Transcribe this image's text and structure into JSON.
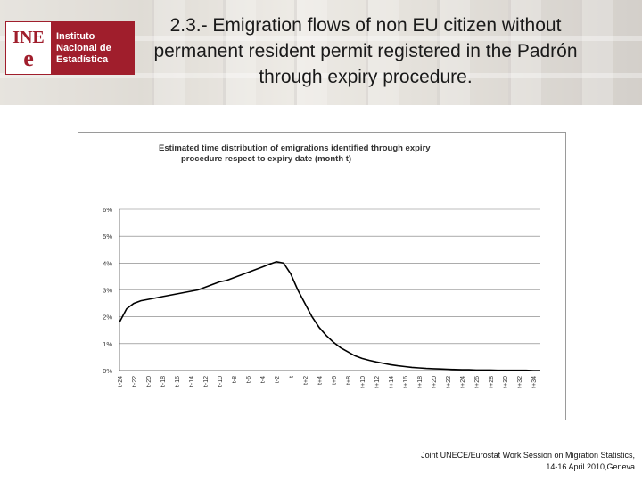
{
  "header": {
    "logo_mark_top": "INE",
    "logo_mark_bottom": "e",
    "logo_lines": [
      "Instituto",
      "Nacional de",
      "Estadística"
    ],
    "title": "2.3.- Emigration flows of non EU citizen without permanent resident permit registered in the Padrón through expiry procedure."
  },
  "footer": {
    "line1": "Joint UNECE/Eurostat Work Session on Migration Statistics,",
    "line2": "14-16 April 2010,Geneva"
  },
  "colors": {
    "brand": "#a01e2c",
    "mean_line": "#000000"
  },
  "chart_data": {
    "type": "line",
    "title": "Estimated time distribution of emigrations identified through expiry procedure respect to expiry date (month t)",
    "xlabel": "",
    "ylabel": "",
    "ylim": [
      0,
      6
    ],
    "y_ticks": [
      "0%",
      "1%",
      "2%",
      "3%",
      "4%",
      "5%",
      "6%"
    ],
    "grid": true,
    "x_range": [
      -24,
      35
    ],
    "x_tick_labels": [
      "t-24",
      "t-22",
      "t-20",
      "t-18",
      "t-16",
      "t-14",
      "t-12",
      "t-10",
      "t-8",
      "t-6",
      "t-4",
      "t-2",
      "t",
      "t+2",
      "t+4",
      "t+6",
      "t+8",
      "t+10",
      "t+12",
      "t+14",
      "t+16",
      "t+18",
      "t+20",
      "t+22",
      "t+24",
      "t+26",
      "t+28",
      "t+30",
      "t+32",
      "t+34"
    ],
    "series": [
      {
        "x": [
          -24,
          -23,
          -22,
          -21,
          -20,
          -19,
          -18,
          -17,
          -16,
          -15,
          -14,
          -13,
          -12,
          -11,
          -10,
          -9,
          -8,
          -7,
          -6,
          -5,
          -4,
          -3,
          -2,
          -1,
          0,
          1,
          2,
          3,
          4,
          5,
          6,
          7,
          8,
          9,
          10,
          11,
          12,
          13,
          14,
          15,
          16,
          17,
          18,
          19,
          20,
          21,
          22,
          23,
          24,
          25,
          26,
          27,
          28,
          29,
          30,
          31,
          32,
          33,
          34,
          35
        ],
        "values": [
          1.8,
          2.3,
          2.5,
          2.6,
          2.65,
          2.7,
          2.75,
          2.8,
          2.85,
          2.9,
          2.95,
          3.0,
          3.1,
          3.2,
          3.3,
          3.35,
          3.45,
          3.55,
          3.65,
          3.75,
          3.85,
          3.95,
          4.05,
          4.0,
          3.6,
          3.0,
          2.5,
          2.0,
          1.6,
          1.3,
          1.05,
          0.85,
          0.7,
          0.55,
          0.45,
          0.38,
          0.32,
          0.27,
          0.22,
          0.18,
          0.15,
          0.12,
          0.1,
          0.08,
          0.07,
          0.06,
          0.05,
          0.04,
          0.03,
          0.03,
          0.02,
          0.02,
          0.02,
          0.01,
          0.01,
          0.01,
          0.01,
          0.01,
          0.0,
          0.0
        ]
      }
    ]
  }
}
